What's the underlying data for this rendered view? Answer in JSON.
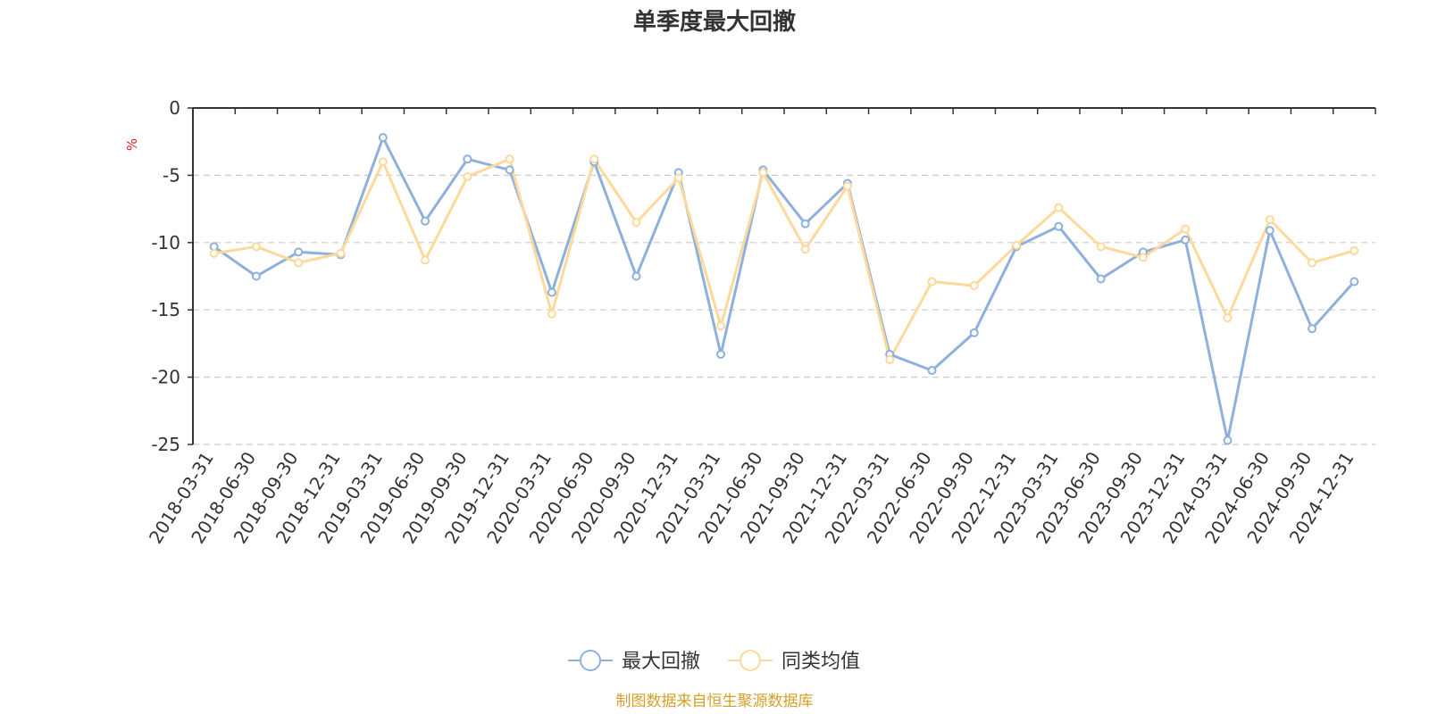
{
  "chart_data": {
    "type": "line",
    "title": "单季度最大回撤",
    "ylabel": "%",
    "xlabel": "",
    "ylim": [
      -25,
      0
    ],
    "yticks": [
      0,
      -5,
      -10,
      -15,
      -20,
      -25
    ],
    "grid": true,
    "legend_position": "bottom-center",
    "categories": [
      "2018-03-31",
      "2018-06-30",
      "2018-09-30",
      "2018-12-31",
      "2019-03-31",
      "2019-06-30",
      "2019-09-30",
      "2019-12-31",
      "2020-03-31",
      "2020-06-30",
      "2020-09-30",
      "2020-12-31",
      "2021-03-31",
      "2021-06-30",
      "2021-09-30",
      "2021-12-31",
      "2022-03-31",
      "2022-06-30",
      "2022-09-30",
      "2022-12-31",
      "2023-03-31",
      "2023-06-30",
      "2023-09-30",
      "2023-12-31",
      "2024-03-31",
      "2024-06-30",
      "2024-09-30",
      "2024-12-31"
    ],
    "series": [
      {
        "name": "最大回撤",
        "color": "#8eb0dc",
        "values": [
          -10.3,
          -12.5,
          -10.7,
          -10.9,
          -2.2,
          -8.4,
          -3.8,
          -4.6,
          -13.7,
          -4.0,
          -12.5,
          -4.8,
          -18.3,
          -4.6,
          -8.6,
          -5.6,
          -18.3,
          -19.5,
          -16.7,
          -10.3,
          -8.8,
          -12.7,
          -10.7,
          -9.8,
          -24.7,
          -9.1,
          -16.4,
          -12.9
        ]
      },
      {
        "name": "同类均值",
        "color": "#fdd99b",
        "values": [
          -10.8,
          -10.3,
          -11.5,
          -10.8,
          -4.0,
          -11.3,
          -5.1,
          -3.8,
          -15.3,
          -3.8,
          -8.5,
          -5.2,
          -16.2,
          -4.8,
          -10.5,
          -5.8,
          -18.7,
          -12.9,
          -13.2,
          -10.2,
          -7.4,
          -10.3,
          -11.1,
          -9.0,
          -15.6,
          -8.3,
          -11.5,
          -10.6
        ]
      }
    ],
    "source": "制图数据来自恒生聚源数据库",
    "colors": {
      "axis": "#333333",
      "grid": "#cccccc",
      "unit": "#e0201c",
      "source": "#d4a02a",
      "title": "#333333"
    }
  }
}
